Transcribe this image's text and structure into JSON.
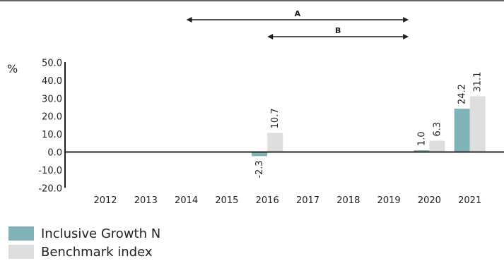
{
  "chart_data": {
    "type": "bar",
    "ylabel": "%",
    "ylim": [
      -20,
      50
    ],
    "yticks": [
      "50.0",
      "40.0",
      "30.0",
      "20.0",
      "10.0",
      "0.0",
      "-10.0",
      "-20.0"
    ],
    "categories": [
      "2012",
      "2013",
      "2014",
      "2015",
      "2016",
      "2017",
      "2018",
      "2019",
      "2020",
      "2021"
    ],
    "series": [
      {
        "name": "Inclusive Growth N",
        "color": "#7fb3b8",
        "values": [
          null,
          null,
          null,
          null,
          -2.3,
          null,
          null,
          null,
          1.0,
          24.2
        ],
        "labels": [
          "",
          "",
          "",
          "",
          "-2.3",
          "",
          "",
          "",
          "1.0",
          "24.2"
        ]
      },
      {
        "name": "Benchmark index",
        "color": "#dedede",
        "values": [
          null,
          null,
          null,
          null,
          10.7,
          null,
          null,
          null,
          6.3,
          31.1
        ],
        "labels": [
          "",
          "",
          "",
          "",
          "10.7",
          "",
          "",
          "",
          "6.3",
          "31.1"
        ]
      }
    ],
    "annotations": [
      {
        "label": "A",
        "from_year": 2014,
        "to_year": 2019
      },
      {
        "label": "B",
        "from_year": 2016,
        "to_year": 2019
      }
    ],
    "legend_position": "bottom-left"
  }
}
